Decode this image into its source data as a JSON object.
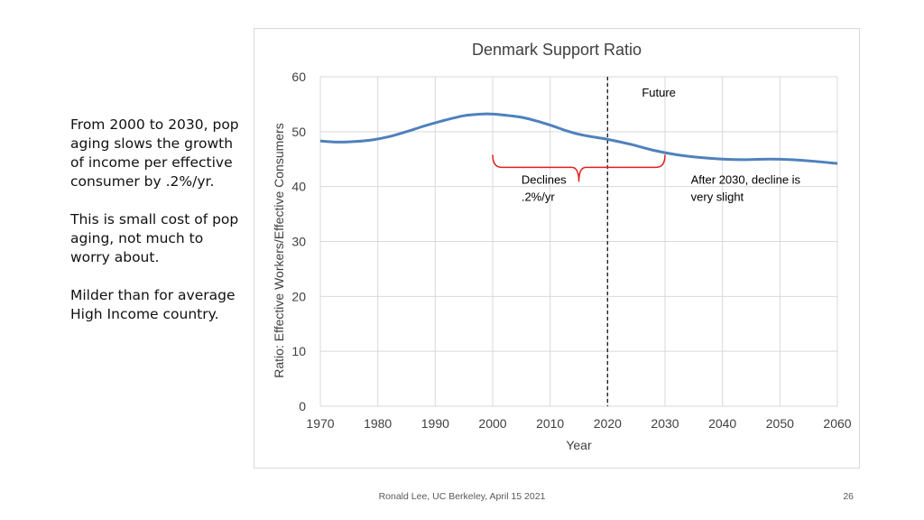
{
  "slide": {
    "paragraphs": [
      "From 2000 to 2030, pop aging slows the growth of income per effective consumer by .2%/yr.",
      "This is small cost of pop aging, not much to worry about.",
      "Milder than for average High Income country."
    ],
    "footer": "Ronald Lee, UC Berkeley, April 15 2021",
    "page_number": "26"
  },
  "chart_data": {
    "type": "line",
    "title": "Denmark Support Ratio",
    "xlabel": "Year",
    "ylabel": "Ratio: Effective Workers/Effective Consumers",
    "xlim": [
      1970,
      2060
    ],
    "ylim": [
      0,
      60
    ],
    "x_ticks": [
      1970,
      1980,
      1990,
      2000,
      2010,
      2020,
      2030,
      2040,
      2050,
      2060
    ],
    "y_ticks": [
      0,
      10,
      20,
      30,
      40,
      50,
      60
    ],
    "grid": true,
    "line_color": "#4f81bd",
    "series": [
      {
        "x": [
          1970,
          1973,
          1976,
          1979,
          1982,
          1985,
          1988,
          1991,
          1995,
          1998,
          2000,
          2003,
          2006,
          2010,
          2013,
          2016,
          2020,
          2024,
          2028,
          2032,
          2036,
          2040,
          2044,
          2048,
          2052,
          2056,
          2060
        ],
        "y": [
          48.3,
          48.1,
          48.2,
          48.5,
          49.1,
          50.0,
          51.0,
          51.9,
          52.9,
          53.2,
          53.2,
          52.9,
          52.4,
          51.2,
          50.1,
          49.3,
          48.6,
          47.7,
          46.6,
          45.8,
          45.3,
          45.0,
          44.9,
          45.0,
          44.9,
          44.6,
          44.2
        ]
      }
    ],
    "vertical_line": {
      "x": 2020,
      "label": "Future"
    },
    "bracket": {
      "x_start": 2000,
      "x_end": 2030,
      "y": 43.5,
      "color": "#e02020"
    },
    "annotations": [
      {
        "lines": [
          "Declines",
          ".2%/yr"
        ],
        "x": 2005,
        "y": 40.5
      },
      {
        "lines": [
          "After 2030, decline is",
          "very slight"
        ],
        "x": 2034.5,
        "y": 40.5
      }
    ]
  }
}
